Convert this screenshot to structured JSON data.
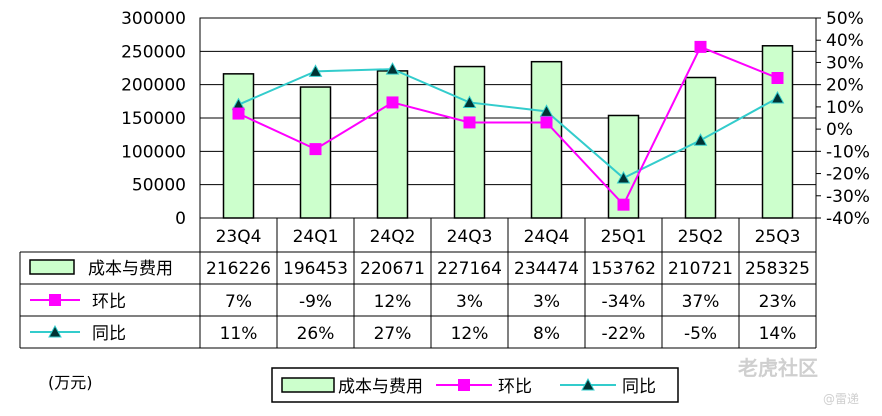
{
  "chart_data": {
    "type": "bar",
    "unit_label": "(万元)",
    "categories": [
      "23Q4",
      "24Q1",
      "24Q2",
      "24Q3",
      "24Q4",
      "25Q1",
      "25Q2",
      "25Q3"
    ],
    "series": [
      {
        "name": "成本与费用",
        "type": "bar",
        "axis": "left",
        "values": [
          216226,
          196453,
          220671,
          227164,
          234474,
          153762,
          210721,
          258325
        ],
        "color": "#ccffcc",
        "border": "#000000"
      },
      {
        "name": "环比",
        "type": "line",
        "axis": "right",
        "values": [
          7,
          -9,
          12,
          3,
          3,
          -34,
          37,
          23
        ],
        "labels": [
          "7%",
          "-9%",
          "12%",
          "3%",
          "3%",
          "-34%",
          "37%",
          "23%"
        ],
        "color": "#ff00ff",
        "marker": "square"
      },
      {
        "name": "同比",
        "type": "line",
        "axis": "right",
        "values": [
          11,
          26,
          27,
          12,
          8,
          -22,
          -5,
          14
        ],
        "labels": [
          "11%",
          "26%",
          "27%",
          "12%",
          "8%",
          "-22%",
          "-5%",
          "14%"
        ],
        "color": "#33cccc",
        "marker": "triangle"
      }
    ],
    "left_axis": {
      "min": 0,
      "max": 300000,
      "step": 50000,
      "ticks": [
        "0",
        "50000",
        "100000",
        "150000",
        "200000",
        "250000",
        "300000"
      ]
    },
    "right_axis": {
      "min": -40,
      "max": 50,
      "step": 10,
      "ticks": [
        "-40%",
        "-30%",
        "-20%",
        "-10%",
        "0%",
        "10%",
        "20%",
        "30%",
        "40%",
        "50%"
      ]
    },
    "grid": true,
    "legend_position": "bottom"
  },
  "watermark": {
    "brand": "老虎社区",
    "author": "@雷递"
  }
}
